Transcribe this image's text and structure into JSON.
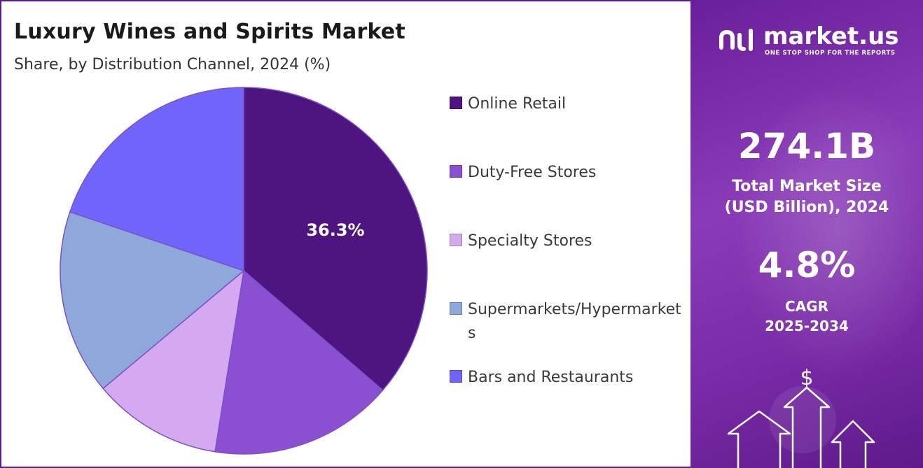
{
  "header": {
    "title": "Luxury Wines and Spirits Market",
    "subtitle": "Share, by Distribution Channel, 2024 (%)"
  },
  "chart_data": {
    "type": "pie",
    "title": "Luxury Wines and Spirits Market",
    "subtitle": "Share, by Distribution Channel, 2024 (%)",
    "categories": [
      "Online Retail",
      "Duty-Free Stores",
      "Specialty Stores",
      "Supermarkets/Hypermarkets",
      "Bars and Restaurants"
    ],
    "values": [
      36.3,
      16.2,
      11.4,
      16.3,
      19.8
    ],
    "colors": [
      "#4e1580",
      "#8b4fd1",
      "#d4a9ef",
      "#8ea8dc",
      "#7064fb"
    ],
    "data_labels": [
      {
        "slice": "Online Retail",
        "text": "36.3%"
      }
    ],
    "legend_position": "right"
  },
  "legend": {
    "items": [
      {
        "label": "Online Retail",
        "color": "#4e1580"
      },
      {
        "label": "Duty-Free Stores",
        "color": "#8b4fd1"
      },
      {
        "label": "Specialty Stores",
        "color": "#d4a9ef"
      },
      {
        "label": "Supermarkets/Hypermarkets",
        "color": "#8ea8dc"
      },
      {
        "label": "Bars and Restaurants",
        "color": "#7064fb"
      }
    ]
  },
  "sidebar": {
    "brand": "market.us",
    "tagline": "ONE STOP SHOP FOR THE REPORTS",
    "market_size_value": "274.1B",
    "market_size_label_line1": "Total Market Size",
    "market_size_label_line2": "(USD Billion), 2024",
    "cagr_value": "4.8%",
    "cagr_label_line1": "CAGR",
    "cagr_label_line2": "2025-2034",
    "currency_symbol": "$",
    "accent_color": "#7a2ba8"
  }
}
